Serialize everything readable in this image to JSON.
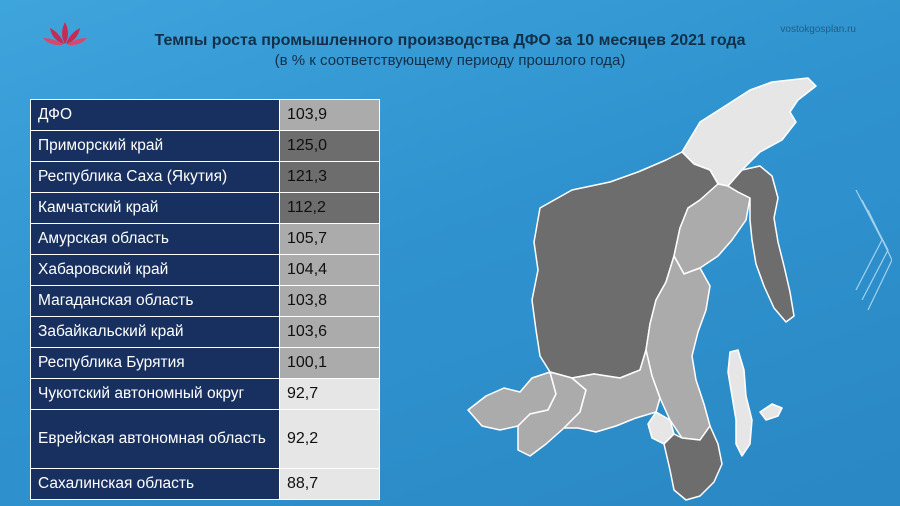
{
  "site": "vostokgosplan.ru",
  "title": "Темпы роста промышленного производства ДФО за 10 месяцев 2021 года",
  "subtitle": "(в % к соответствующему периоду прошлого года)",
  "colors": {
    "dark_shade": "#6d6d6d",
    "mid_shade": "#ababab",
    "light_shade": "#e6e6e6",
    "label_bg": "#18305f"
  },
  "rows": [
    {
      "name": "ДФО",
      "value": "103,9",
      "shade": "#ababab"
    },
    {
      "name": "Приморский край",
      "value": "125,0",
      "shade": "#6d6d6d"
    },
    {
      "name": "Республика Саха (Якутия)",
      "value": "121,3",
      "shade": "#6d6d6d"
    },
    {
      "name": "Камчатский край",
      "value": "112,2",
      "shade": "#6d6d6d"
    },
    {
      "name": "Амурская область",
      "value": "105,7",
      "shade": "#ababab"
    },
    {
      "name": "Хабаровский край",
      "value": "104,4",
      "shade": "#ababab"
    },
    {
      "name": "Магаданская область",
      "value": "103,8",
      "shade": "#ababab"
    },
    {
      "name": "Забайкальский край",
      "value": "103,6",
      "shade": "#ababab"
    },
    {
      "name": "Республика Бурятия",
      "value": "100,1",
      "shade": "#ababab"
    },
    {
      "name": "Чукотский автономный округ",
      "value": "92,7",
      "shade": "#e6e6e6"
    },
    {
      "name": "Еврейская автономная область",
      "value": "92,2",
      "shade": "#e6e6e6"
    },
    {
      "name": "Сахалинская область",
      "value": "88,7",
      "shade": "#e6e6e6"
    }
  ]
}
